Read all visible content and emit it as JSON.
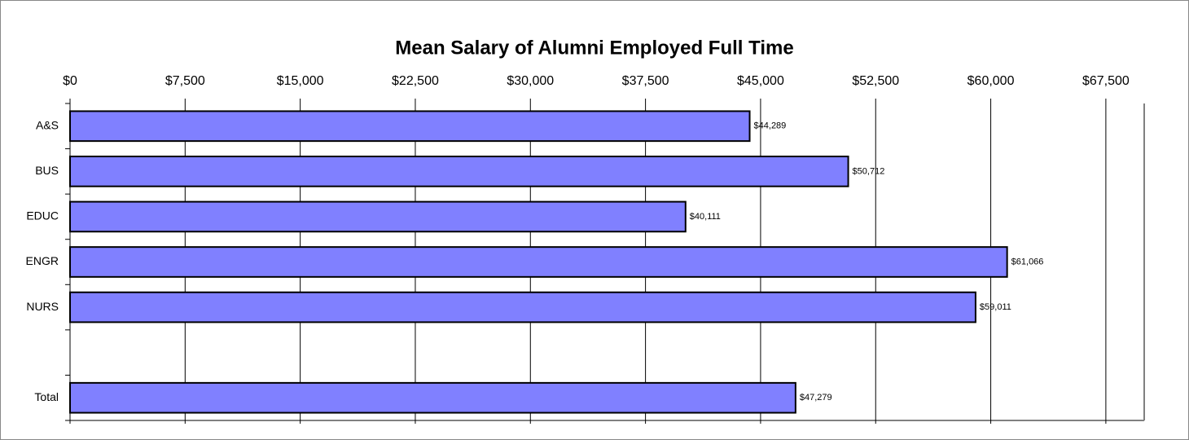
{
  "chart_data": {
    "type": "bar",
    "orientation": "horizontal",
    "title": "Mean Salary of Alumni Employed Full Time",
    "categories": [
      "A&S",
      "BUS",
      "EDUC",
      "ENGR",
      "NURS",
      null,
      "Total"
    ],
    "values": [
      44289,
      50712,
      40111,
      61066,
      59011,
      null,
      47279
    ],
    "value_labels": [
      "$44,289",
      "$50,712",
      "$40,111",
      "$61,066",
      "$59,011",
      null,
      "$47,279"
    ],
    "color": "#8080ff",
    "xlim": [
      0,
      70000
    ],
    "xticks": [
      {
        "value": 0,
        "label": "$0"
      },
      {
        "value": 7500,
        "label": "$7,500"
      },
      {
        "value": 15000,
        "label": "$15,000"
      },
      {
        "value": 22500,
        "label": "$22,500"
      },
      {
        "value": 30000,
        "label": "$30,000"
      },
      {
        "value": 37500,
        "label": "$37,500"
      },
      {
        "value": 45000,
        "label": "$45,000"
      },
      {
        "value": 52500,
        "label": "$52,500"
      },
      {
        "value": 60000,
        "label": "$60,000"
      },
      {
        "value": 67500,
        "label": "$67,500"
      }
    ],
    "grid": true
  }
}
